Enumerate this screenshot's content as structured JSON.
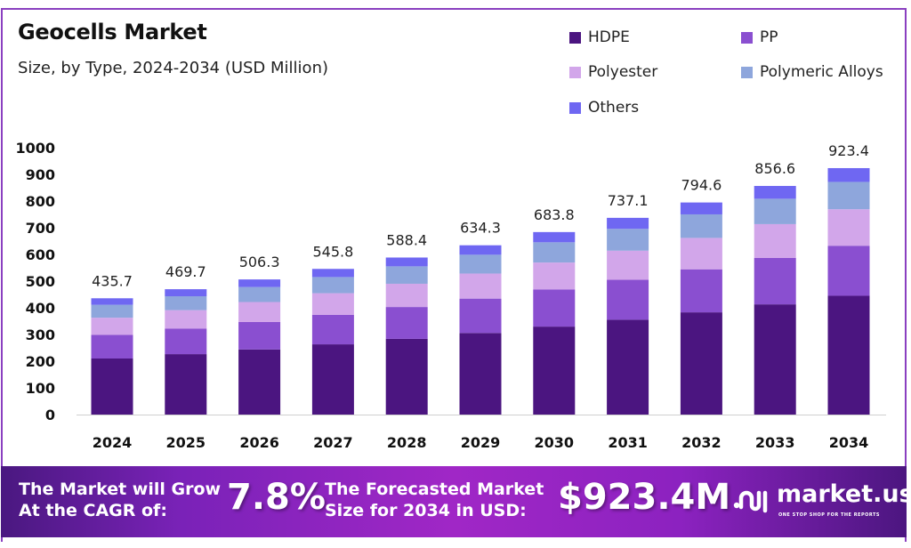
{
  "header": {
    "title": "Geocells Market",
    "subtitle": "Size, by Type, 2024-2034 (USD Million)"
  },
  "legend": [
    {
      "label": "HDPE",
      "color": "#4b1580"
    },
    {
      "label": "PP",
      "color": "#8a4fd0"
    },
    {
      "label": "Polyester",
      "color": "#d2a6ea"
    },
    {
      "label": "Polymeric Alloys",
      "color": "#8ea6dc"
    },
    {
      "label": "Others",
      "color": "#6f67f2"
    }
  ],
  "chart_data": {
    "type": "bar",
    "stacked": true,
    "title": "Geocells Market",
    "subtitle": "Size, by Type, 2024-2034 (USD Million)",
    "xlabel": "",
    "ylabel": "",
    "ylim": [
      0,
      1000
    ],
    "yticks": [
      0,
      100,
      200,
      300,
      400,
      500,
      600,
      700,
      800,
      900,
      1000
    ],
    "grid": false,
    "legend_position": "top-right",
    "categories": [
      "2024",
      "2025",
      "2026",
      "2027",
      "2028",
      "2029",
      "2030",
      "2031",
      "2032",
      "2033",
      "2034"
    ],
    "totals": [
      435.7,
      469.7,
      506.3,
      545.8,
      588.4,
      634.3,
      683.8,
      737.1,
      794.6,
      856.6,
      923.4
    ],
    "total_labels": [
      "435.7",
      "469.7",
      "506.3",
      "545.8",
      "588.4",
      "634.3",
      "683.8",
      "737.1",
      "794.6",
      "856.6",
      "923.4"
    ],
    "series": [
      {
        "name": "HDPE",
        "color": "#4b1580",
        "values": [
          210.0,
          226.4,
          244.0,
          263.1,
          283.6,
          305.7,
          329.6,
          355.3,
          383.0,
          412.9,
          445.1
        ]
      },
      {
        "name": "PP",
        "color": "#8a4fd0",
        "values": [
          88.4,
          95.3,
          102.8,
          110.8,
          119.4,
          128.8,
          138.8,
          149.6,
          161.3,
          173.9,
          187.5
        ]
      },
      {
        "name": "Polyester",
        "color": "#d2a6ea",
        "values": [
          64.5,
          69.5,
          74.9,
          80.8,
          87.1,
          93.9,
          101.2,
          109.1,
          117.6,
          126.8,
          136.7
        ]
      },
      {
        "name": "Polymeric Alloys",
        "color": "#8ea6dc",
        "values": [
          48.4,
          52.1,
          56.2,
          60.6,
          65.3,
          70.4,
          75.9,
          81.8,
          88.2,
          95.1,
          102.5
        ]
      },
      {
        "name": "Others",
        "color": "#6f67f2",
        "values": [
          24.4,
          26.4,
          28.4,
          30.5,
          33.0,
          35.5,
          38.3,
          41.3,
          44.5,
          47.9,
          51.6
        ]
      }
    ]
  },
  "banner": {
    "cagr_text_line1": "The Market will Grow",
    "cagr_text_line2": "At the CAGR of:",
    "cagr_value": "7.8%",
    "forecast_text_line1": "The Forecasted Market",
    "forecast_text_line2": "Size for 2034 in USD:",
    "forecast_value": "$923.4M",
    "logo_name": "market.us",
    "logo_tagline": "ONE STOP SHOP FOR THE REPORTS"
  }
}
